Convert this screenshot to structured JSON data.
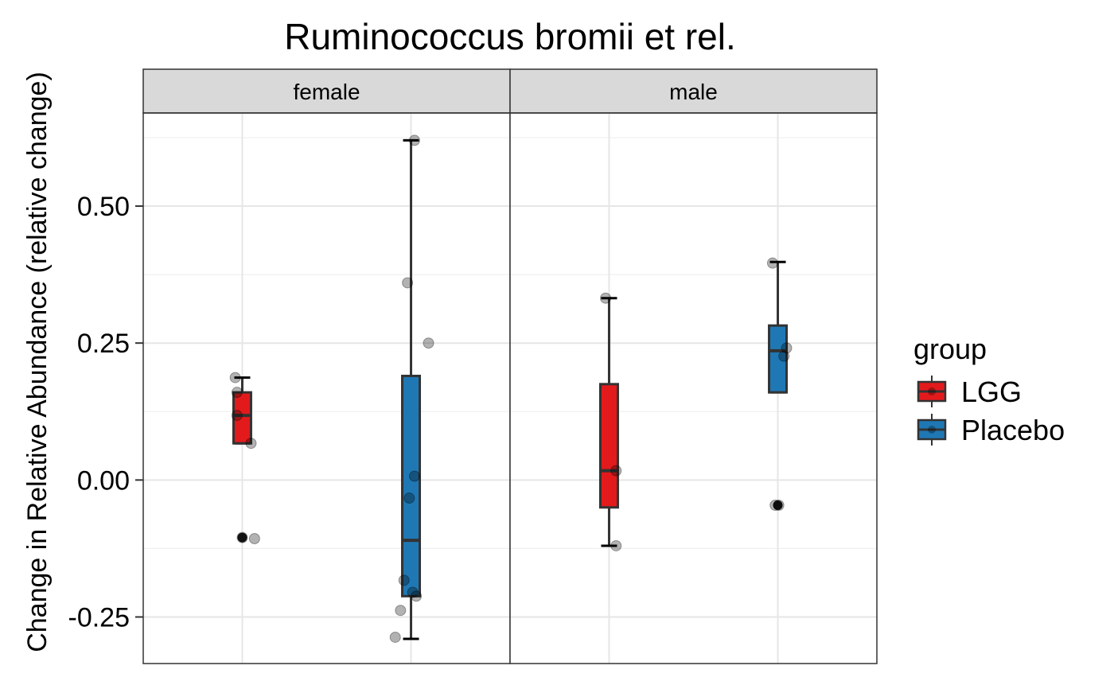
{
  "chart_data": {
    "type": "boxplot",
    "title": "Ruminococcus bromii et rel.",
    "ylabel": "Change in Relative Abundance (relative change)",
    "xlabel": "",
    "ylim": [
      -0.335,
      0.67
    ],
    "y_ticks": [
      -0.25,
      0.0,
      0.25,
      0.5
    ],
    "y_tick_labels": [
      "-0.25",
      "0.00",
      "0.25",
      "0.50"
    ],
    "grid": true,
    "legend": {
      "title": "group",
      "position": "right",
      "entries": [
        "LGG",
        "Placebo"
      ]
    },
    "colors": {
      "LGG": "#e31a1c",
      "Placebo": "#1f78b4"
    },
    "facets": [
      {
        "label": "female",
        "boxes": [
          {
            "group": "LGG",
            "whisker_low": 0.067,
            "q1": 0.067,
            "median": 0.118,
            "q3": 0.16,
            "whisker_high": 0.187,
            "outliers": [
              -0.105
            ]
          },
          {
            "group": "Placebo",
            "whisker_low": -0.29,
            "q1": -0.212,
            "median": -0.11,
            "q3": 0.19,
            "whisker_high": 0.62,
            "outliers": []
          }
        ],
        "points": [
          {
            "group": "LGG",
            "values": [
              0.187,
              0.16,
              0.118,
              0.067,
              -0.105,
              -0.107
            ]
          },
          {
            "group": "Placebo",
            "values": [
              0.62,
              0.36,
              0.25,
              0.007,
              -0.033,
              -0.183,
              -0.205,
              -0.212,
              -0.238,
              -0.287
            ]
          }
        ]
      },
      {
        "label": "male",
        "boxes": [
          {
            "group": "LGG",
            "whisker_low": -0.12,
            "q1": -0.05,
            "median": 0.017,
            "q3": 0.175,
            "whisker_high": 0.332,
            "outliers": []
          },
          {
            "group": "Placebo",
            "whisker_low": 0.16,
            "q1": 0.16,
            "median": 0.236,
            "q3": 0.282,
            "whisker_high": 0.398,
            "outliers": [
              -0.046
            ]
          }
        ],
        "points": [
          {
            "group": "LGG",
            "values": [
              0.332,
              0.017,
              -0.12
            ]
          },
          {
            "group": "Placebo",
            "values": [
              0.396,
              0.241,
              0.226,
              -0.046,
              -0.046
            ]
          }
        ]
      }
    ]
  }
}
